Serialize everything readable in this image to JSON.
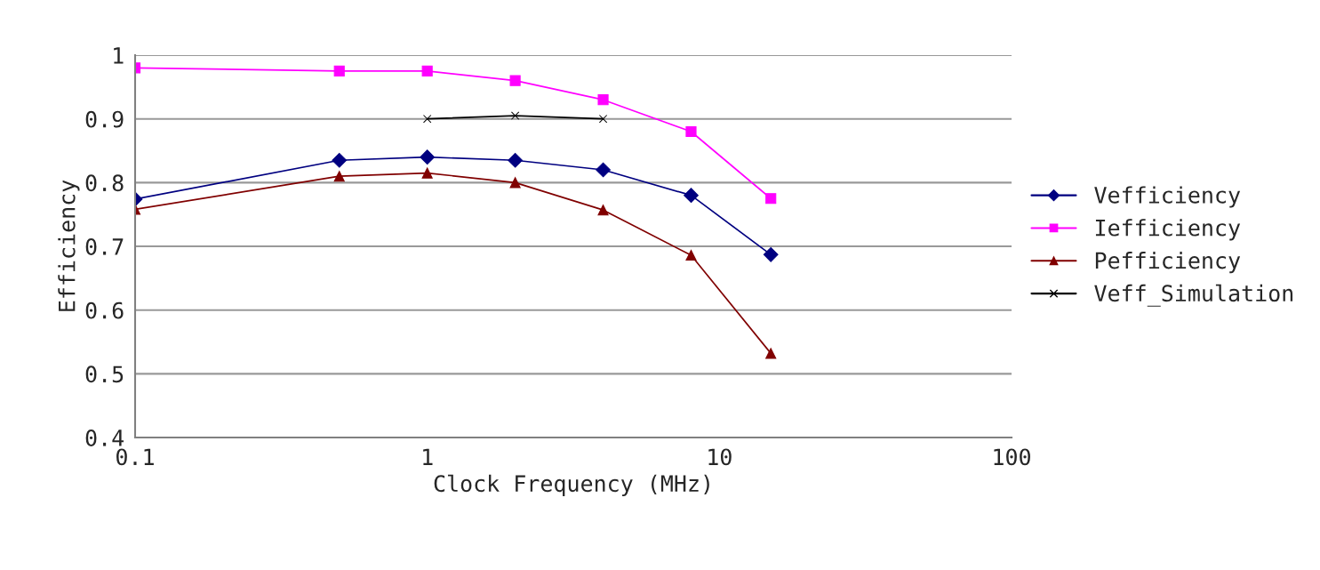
{
  "chart_data": {
    "type": "line",
    "xlabel": "Clock Frequency (MHz)",
    "ylabel": "Efficiency",
    "x": [
      0.1,
      0.5,
      1,
      2,
      4,
      8,
      15
    ],
    "series": [
      {
        "name": "Vefficiency",
        "color": "#000080",
        "marker": "diamond",
        "values": [
          0.774,
          0.835,
          0.84,
          0.835,
          0.82,
          0.78,
          0.687
        ]
      },
      {
        "name": "Iefficiency",
        "color": "#ff00ff",
        "marker": "square",
        "values": [
          0.98,
          0.975,
          0.975,
          0.96,
          0.93,
          0.88,
          0.775
        ]
      },
      {
        "name": "Pefficiency",
        "color": "#800000",
        "marker": "triangle",
        "values": [
          0.758,
          0.81,
          0.815,
          0.8,
          0.757,
          0.686,
          0.532
        ]
      },
      {
        "name": "Veff_Simulation",
        "color": "#000000",
        "marker": "cross",
        "x": [
          1,
          2,
          4
        ],
        "values": [
          0.9,
          0.905,
          0.9
        ]
      }
    ],
    "log": "x",
    "xlim": [
      0.1,
      100
    ],
    "xticks": [
      0.1,
      1,
      10,
      100
    ],
    "ylim": [
      0.4,
      1
    ],
    "yticks": [
      0.4,
      0.5,
      0.6,
      0.7,
      0.8,
      0.9,
      1
    ],
    "grid": "y",
    "legend": "right",
    "line_style": "solid"
  }
}
